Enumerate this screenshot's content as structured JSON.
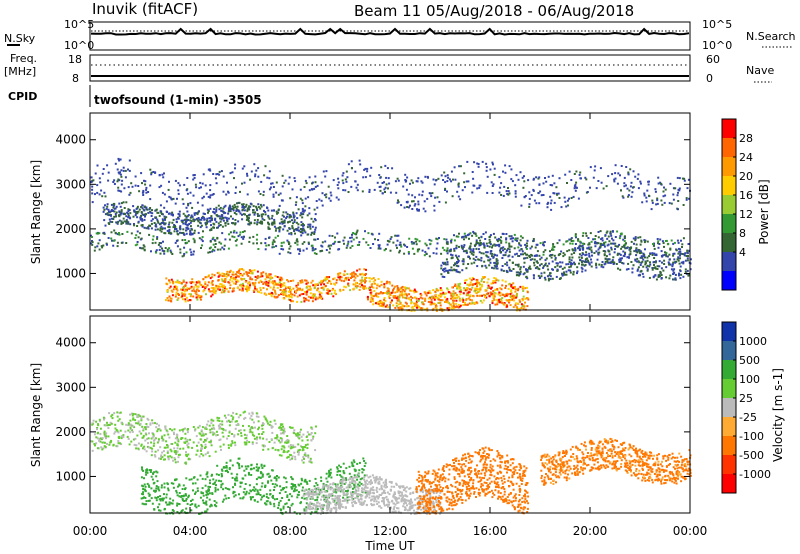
{
  "header": {
    "station": "Inuvik (fitACF)",
    "beam_range": "Beam 11 05/Aug/2018 - 06/Aug/2018"
  },
  "top_panels": {
    "nsky_label": "N.Sky",
    "nsky_ticks": [
      "10^5",
      "10^0"
    ],
    "nsearch_label": "N.Search",
    "nsearch_ticks": [
      "10^5",
      "10^0"
    ],
    "freq_label_line1": "Freq.",
    "freq_label_line2": "[MHz]",
    "freq_ticks": [
      "18",
      "8"
    ],
    "nave_label": "Nave",
    "nave_ticks": [
      "60",
      "0"
    ],
    "cpid_label": "CPID",
    "cpid_text": "twofsound (1-min) -3505"
  },
  "chart_data": [
    {
      "type": "heatmap",
      "quantity": "Power",
      "ylabel": "Slant Range [km]",
      "xlabel": "Time UT",
      "xlim_hours": [
        0,
        24
      ],
      "ylim_km": [
        180,
        4600
      ],
      "yticks": [
        "1000",
        "2000",
        "3000",
        "4000"
      ],
      "colorbar_label": "Power [dB]",
      "colorbar_ticks": [
        "28",
        "24",
        "20",
        "16",
        "12",
        "8",
        "4"
      ],
      "colorbar_colors": [
        "#ff0000",
        "#ff6600",
        "#ff9900",
        "#ffcc00",
        "#99cc33",
        "#339933",
        "#336633",
        "#3344aa",
        "#0000ff"
      ],
      "scatter_bands": [
        {
          "t0": 0.0,
          "t1": 24.0,
          "r0": 1500,
          "r1": 1900,
          "color_range": [
            4,
            12
          ]
        },
        {
          "t0": 0.5,
          "t1": 9.0,
          "r0": 2000,
          "r1": 2500,
          "color_range": [
            4,
            10
          ]
        },
        {
          "t0": 3.0,
          "t1": 11.0,
          "r0": 500,
          "r1": 1000,
          "color_range": [
            16,
            28
          ]
        },
        {
          "t0": 11.0,
          "t1": 17.5,
          "r0": 200,
          "r1": 800,
          "color_range": [
            16,
            28
          ]
        },
        {
          "t0": 14.0,
          "t1": 24.0,
          "r0": 1000,
          "r1": 1600,
          "color_range": [
            4,
            10
          ]
        },
        {
          "t0": 0.0,
          "t1": 24.0,
          "r0": 2600,
          "r1": 3400,
          "color_range": [
            4,
            8
          ]
        }
      ]
    },
    {
      "type": "heatmap",
      "quantity": "Velocity",
      "ylabel": "Slant Range [km]",
      "xlabel": "Time UT",
      "xlim_hours": [
        0,
        24
      ],
      "ylim_km": [
        180,
        4600
      ],
      "yticks": [
        "1000",
        "2000",
        "3000",
        "4000"
      ],
      "colorbar_label": "Velocity [m s-1]",
      "colorbar_ticks": [
        "1000",
        "500",
        "100",
        "25",
        "-25",
        "-100",
        "-500",
        "-1000"
      ],
      "colorbar_colors": [
        "#1133aa",
        "#336699",
        "#33aa33",
        "#66cc33",
        "#bbbbbb",
        "#ffaa33",
        "#ff7700",
        "#ff3300",
        "#ff0000"
      ],
      "scatter_bands": [
        {
          "t0": 0.0,
          "t1": 9.0,
          "r0": 1500,
          "r1": 2300,
          "color_range": [
            -25,
            100
          ]
        },
        {
          "t0": 2.0,
          "t1": 11.0,
          "r0": 300,
          "r1": 1200,
          "color_range": [
            100,
            500
          ]
        },
        {
          "t0": 8.5,
          "t1": 14.0,
          "r0": 200,
          "r1": 900,
          "color_range": [
            -25,
            25
          ]
        },
        {
          "t0": 13.0,
          "t1": 17.5,
          "r0": 300,
          "r1": 1400,
          "color_range": [
            -500,
            -100
          ]
        },
        {
          "t0": 18.0,
          "t1": 24.0,
          "r0": 1000,
          "r1": 1700,
          "color_range": [
            -500,
            -25
          ]
        }
      ]
    }
  ],
  "time_axis": {
    "ticks": [
      "00:00",
      "04:00",
      "08:00",
      "12:00",
      "16:00",
      "20:00",
      "00:00"
    ],
    "label": "Time UT"
  }
}
